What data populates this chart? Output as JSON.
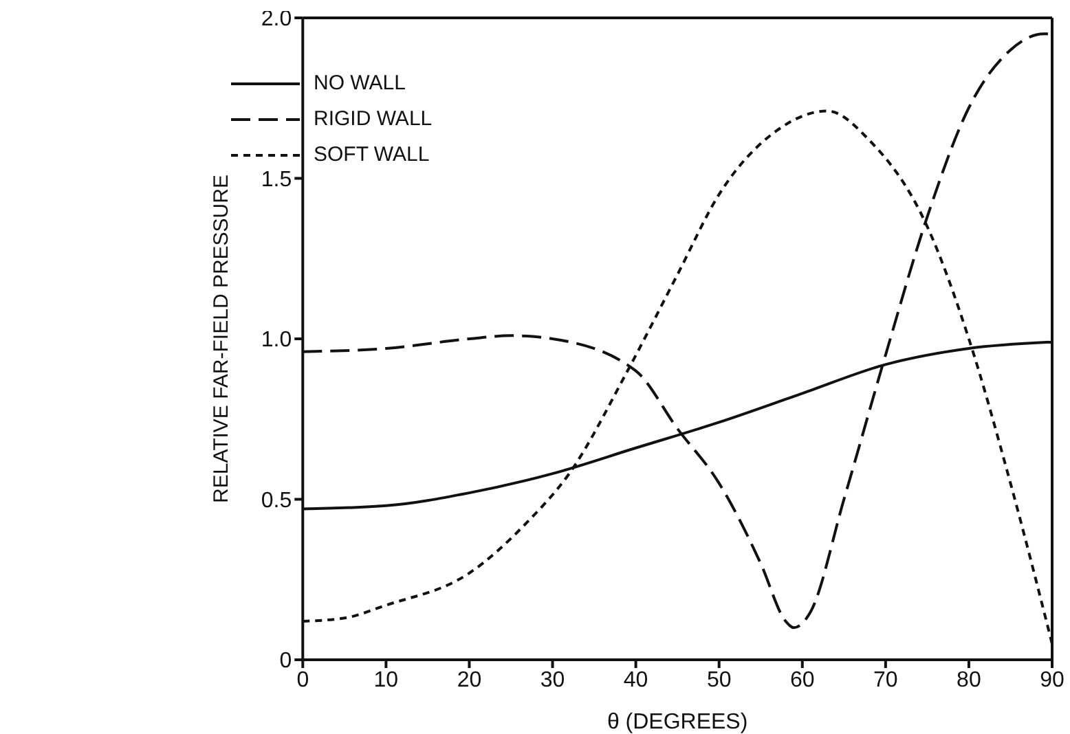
{
  "chart_data": {
    "type": "line",
    "xlabel": "θ (DEGREES)",
    "ylabel": "RELATIVE FAR-FIELD PRESSURE",
    "xlim": [
      0,
      90
    ],
    "ylim": [
      0,
      2.0
    ],
    "xticks": [
      0,
      10,
      20,
      30,
      40,
      50,
      60,
      70,
      80,
      90
    ],
    "yticks": [
      0,
      {
        "value": 0.5,
        "label": "0.5"
      },
      {
        "value": 1,
        "label": "1.0"
      },
      {
        "value": 1.5,
        "label": "1.5"
      },
      {
        "value": 2,
        "label": "2.0"
      }
    ],
    "legend": "top left",
    "marker": "none",
    "series": [
      {
        "name": "NO WALL",
        "color": "#111111",
        "line_style": "solid",
        "x": [
          0,
          10,
          20,
          30,
          40,
          50,
          60,
          70,
          80,
          90
        ],
        "values": [
          0.47,
          0.48,
          0.52,
          0.58,
          0.66,
          0.74,
          0.83,
          0.92,
          0.97,
          0.99
        ]
      },
      {
        "name": "RIGID WALL",
        "color": "#111111",
        "line_style": "dashed",
        "x": [
          0,
          10,
          20,
          25,
          30,
          40,
          45,
          50,
          55,
          58,
          59,
          61,
          65,
          70,
          75,
          80,
          85,
          89,
          90
        ],
        "values": [
          0.96,
          0.97,
          1.0,
          1.01,
          1.0,
          0.9,
          0.72,
          0.55,
          0.3,
          0.12,
          0.1,
          0.15,
          0.5,
          0.95,
          1.38,
          1.72,
          1.9,
          1.95,
          1.95
        ]
      },
      {
        "name": "SOFT WALL",
        "color": "#111111",
        "line_style": "dotted",
        "x": [
          0,
          5,
          10,
          20,
          27,
          32,
          39,
          45,
          50,
          57,
          63,
          68,
          75,
          80,
          85,
          90
        ],
        "values": [
          0.12,
          0.13,
          0.17,
          0.27,
          0.43,
          0.58,
          0.9,
          1.2,
          1.45,
          1.65,
          1.71,
          1.62,
          1.35,
          1.0,
          0.55,
          0.05
        ]
      }
    ]
  }
}
